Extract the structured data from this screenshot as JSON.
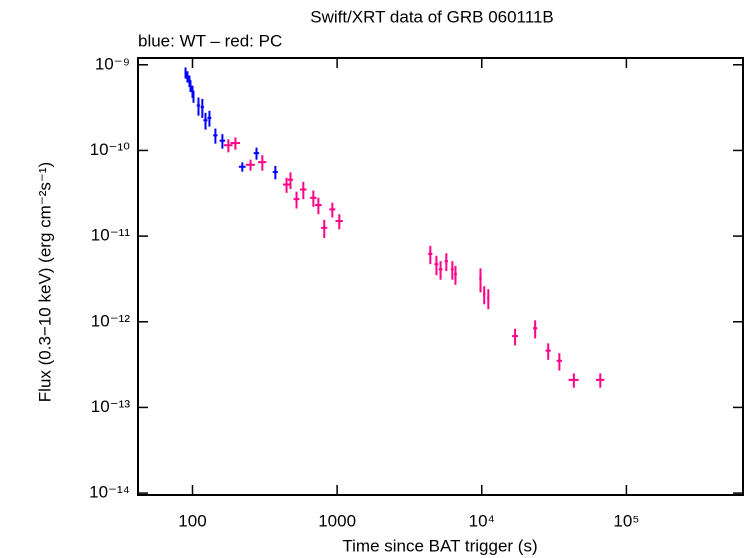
{
  "chart_data": {
    "type": "scatter",
    "title": "Swift/XRT data of GRB 060111B",
    "subtitle": "blue: WT – red: PC",
    "x_label": "Time since BAT trigger (s)",
    "y_label": "Flux (0.3−10 keV) (erg cm⁻²s⁻¹)",
    "xscale": "log",
    "yscale": "log",
    "xlim": [
      42,
      640000
    ],
    "ylim": [
      9.5e-15,
      1.2e-09
    ],
    "xticks": [
      100,
      1000,
      {
        "value": 10000,
        "label": "10⁴"
      },
      {
        "value": 100000,
        "label": "10⁵"
      }
    ],
    "yticks": [
      {
        "value": 1e-09,
        "label": "10⁻⁹"
      },
      {
        "value": 1e-10,
        "label": "10⁻¹⁰"
      },
      {
        "value": 1e-11,
        "label": "10⁻¹¹"
      },
      {
        "value": 1e-12,
        "label": "10⁻¹²"
      },
      {
        "value": 1e-13,
        "label": "10⁻¹³"
      },
      {
        "value": 1e-14,
        "label": "10⁻¹⁴"
      }
    ],
    "series": [
      {
        "name": "WT",
        "color": "#0000ff",
        "x": [
          89.5,
          92.3,
          95.3,
          96.9,
          100,
          101.6,
          110,
          117,
          123,
          131,
          144,
          161,
          221,
          277,
          374
        ],
        "xerr": [
          1,
          1,
          1,
          1,
          1,
          1,
          3,
          3,
          4,
          4,
          5,
          7,
          12,
          12,
          15
        ],
        "values": [
          8.1e-10,
          7.3e-10,
          6.5e-10,
          5.7e-10,
          4.9e-10,
          4.3e-10,
          3.35e-10,
          3.2e-10,
          2.25e-10,
          2.4e-10,
          1.5e-10,
          1.3e-10,
          6.45e-11,
          9.3e-11,
          5.6e-11
        ],
        "yerr": [
          1.2e-10,
          1.1e-10,
          1e-10,
          9e-11,
          8e-11,
          7e-11,
          8e-11,
          8e-11,
          5e-11,
          5e-11,
          3e-11,
          2.5e-11,
          8e-12,
          1.5e-11,
          1e-11
        ]
      },
      {
        "name": "PC",
        "color": "#ff0088",
        "x": [
          177,
          198,
          252,
          304,
          447,
          476,
          524,
          584,
          685,
          742,
          815,
          927,
          1035,
          4410,
          4860,
          5190,
          5690,
          6260,
          6580,
          9800,
          10400,
          11100,
          17000,
          23400,
          28800,
          34400,
          43300,
          66000
        ],
        "xerr": [
          12,
          15,
          18,
          20,
          25,
          20,
          25,
          30,
          35,
          40,
          40,
          45,
          60,
          150,
          150,
          150,
          150,
          150,
          150,
          200,
          200,
          200,
          800,
          800,
          1200,
          1500,
          3500,
          4500
        ],
        "values": [
          1.15e-10,
          1.22e-10,
          6.8e-11,
          7.3e-11,
          4e-11,
          4.55e-11,
          2.7e-11,
          3.5e-11,
          2.8e-11,
          2.3e-11,
          1.25e-11,
          2.05e-11,
          1.5e-11,
          6.2e-12,
          4.7e-12,
          4.1e-12,
          5.1e-12,
          4.1e-12,
          3.6e-12,
          3.2e-12,
          2.1e-12,
          1.9e-12,
          6.8e-13,
          8.4e-13,
          4.6e-13,
          3.5e-13,
          2.1e-13,
          2.1e-13
        ],
        "yerr": [
          2e-11,
          2e-11,
          1e-11,
          1.5e-11,
          8e-12,
          1e-11,
          6e-12,
          8e-12,
          6e-12,
          5e-12,
          3e-12,
          4e-12,
          3e-12,
          1.5e-12,
          1.2e-12,
          1e-12,
          1.2e-12,
          1e-12,
          9e-13,
          1e-12,
          5e-13,
          5e-13,
          1.5e-13,
          2e-13,
          1e-13,
          8e-14,
          4e-14,
          4e-14
        ]
      }
    ]
  }
}
